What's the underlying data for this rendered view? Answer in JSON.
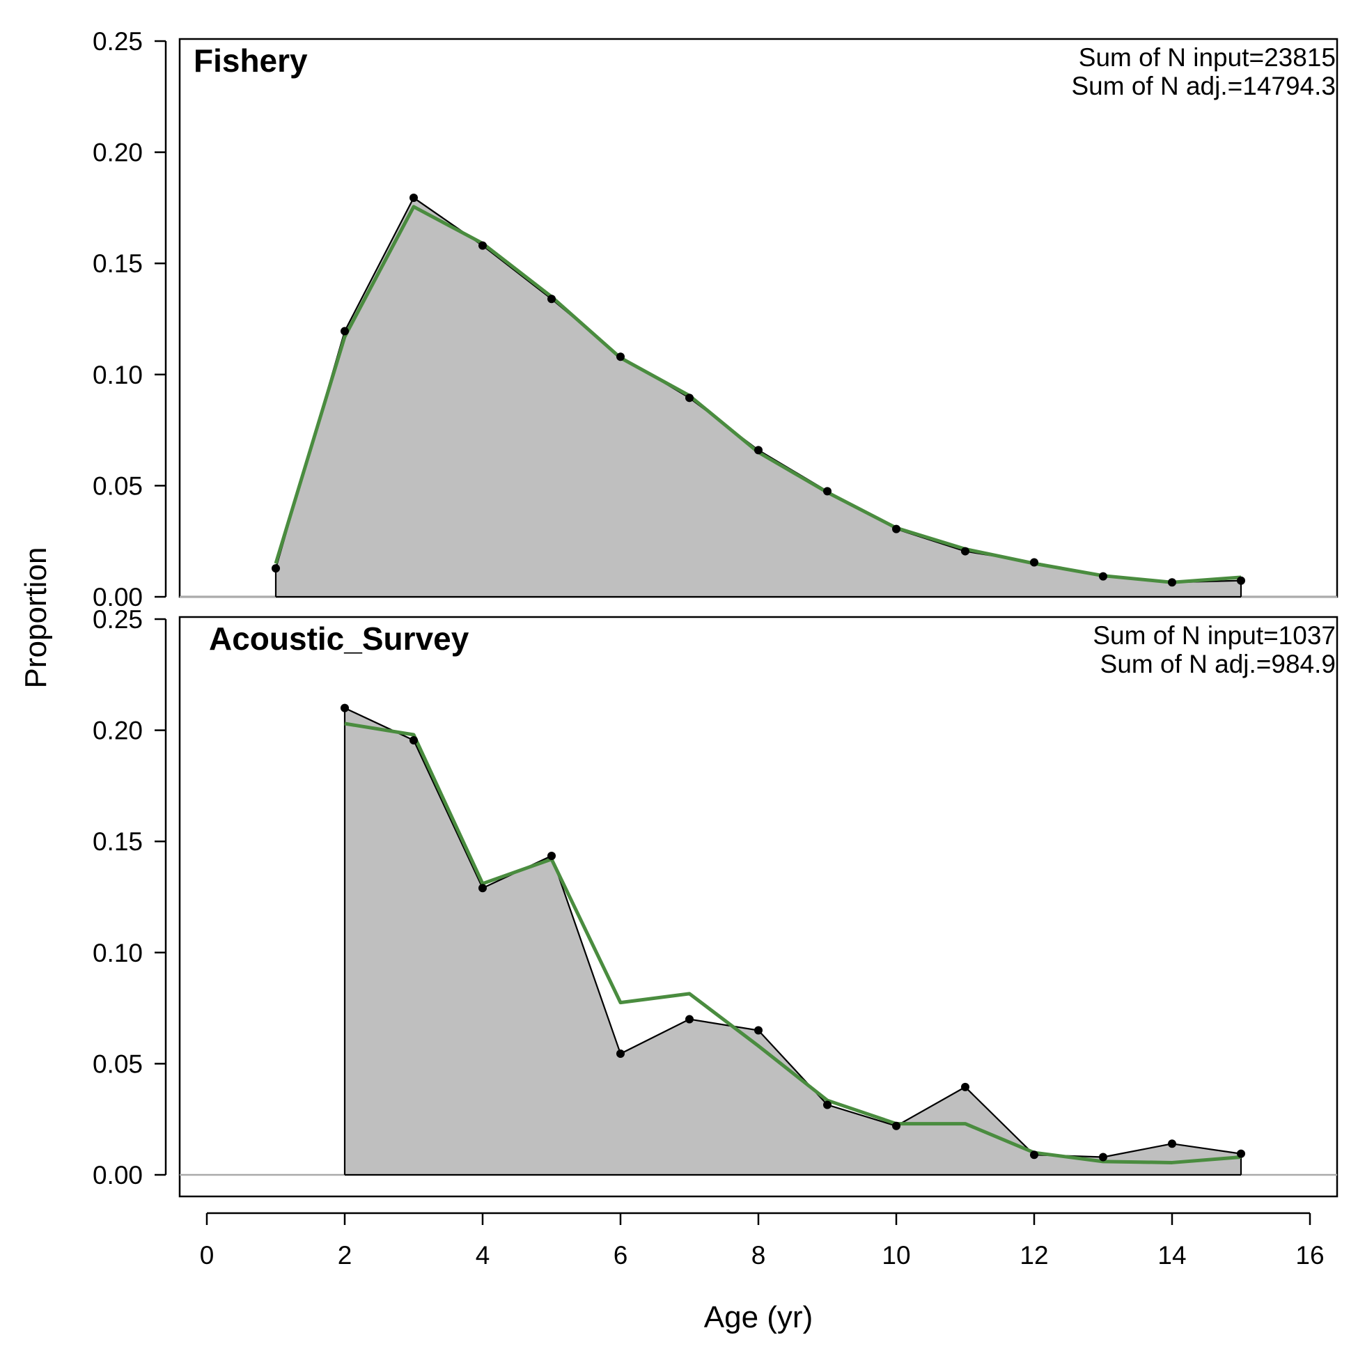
{
  "chart_data": {
    "type": "area",
    "xlabel": "Age (yr)",
    "ylabel": "Proportion",
    "xlim": [
      0,
      16
    ],
    "x_ticks": [
      "0",
      "2",
      "4",
      "6",
      "8",
      "10",
      "12",
      "14",
      "16"
    ],
    "ylim": [
      0,
      0.25
    ],
    "y_ticks": [
      "0.00",
      "0.05",
      "0.10",
      "0.15",
      "0.20",
      "0.25"
    ],
    "colors": {
      "area_fill": "#bfbfbf",
      "observed": "#000000",
      "expected": "#4a8c3f",
      "zero_line": "#aaaaaa"
    },
    "panels": [
      {
        "title": "Fishery",
        "annotation": [
          "Sum of N input=23815",
          "Sum of N adj.=14794.3"
        ],
        "series": [
          {
            "role": "observed",
            "x": [
              1,
              2,
              3,
              4,
              5,
              6,
              7,
              8,
              9,
              10,
              11,
              12,
              13,
              14,
              15
            ],
            "values": [
              0.0128,
              0.1195,
              0.1795,
              0.158,
              0.134,
              0.108,
              0.0895,
              0.066,
              0.0475,
              0.0305,
              0.0205,
              0.0155,
              0.0092,
              0.0065,
              0.0073
            ]
          },
          {
            "role": "expected",
            "x": [
              1,
              2,
              3,
              4,
              5,
              6,
              7,
              8,
              9,
              10,
              11,
              12,
              13,
              14,
              15
            ],
            "values": [
              0.015,
              0.117,
              0.1755,
              0.159,
              0.135,
              0.1075,
              0.0905,
              0.065,
              0.047,
              0.031,
              0.0215,
              0.015,
              0.0095,
              0.0065,
              0.0088
            ]
          }
        ]
      },
      {
        "title": "Acoustic_Survey",
        "annotation": [
          "Sum of N input=1037",
          "Sum of N adj.=984.9"
        ],
        "series": [
          {
            "role": "observed",
            "x": [
              2,
              3,
              4,
              5,
              6,
              7,
              8,
              9,
              10,
              11,
              12,
              13,
              14,
              15
            ],
            "values": [
              0.21,
              0.1955,
              0.129,
              0.1435,
              0.0545,
              0.07,
              0.065,
              0.0315,
              0.022,
              0.0395,
              0.009,
              0.008,
              0.014,
              0.0095
            ]
          },
          {
            "role": "expected",
            "x": [
              2,
              3,
              4,
              5,
              6,
              7,
              8,
              9,
              10,
              11,
              12,
              13,
              14,
              15
            ],
            "values": [
              0.203,
              0.198,
              0.131,
              0.142,
              0.0775,
              0.0815,
              0.058,
              0.0335,
              0.023,
              0.023,
              0.01,
              0.006,
              0.0055,
              0.008
            ]
          }
        ]
      }
    ]
  }
}
